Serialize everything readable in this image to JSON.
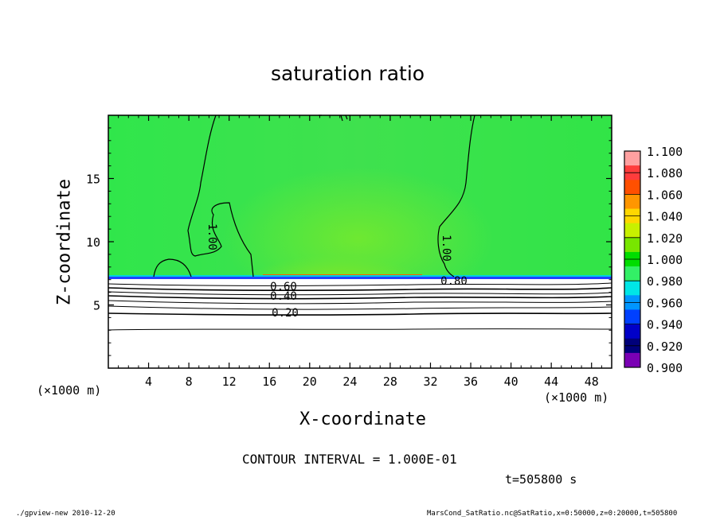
{
  "chart_data": {
    "type": "heatmap",
    "title": "saturation ratio",
    "xlabel": "X-coordinate",
    "ylabel": "Z-coordinate",
    "x_unit": "(×1000 m)",
    "y_unit": "(×1000 m)",
    "xlim": [
      0,
      50
    ],
    "ylim": [
      0,
      20
    ],
    "xticks": [
      4,
      8,
      12,
      16,
      20,
      24,
      28,
      32,
      36,
      40,
      44,
      48
    ],
    "yticks": [
      5,
      10,
      15
    ],
    "colorbar": {
      "levels": [
        "1.100",
        "1.080",
        "1.060",
        "1.040",
        "1.020",
        "1.000",
        "0.980",
        "0.960",
        "0.940",
        "0.920",
        "0.900"
      ],
      "colors": [
        "#ffa0a0",
        "#ff3c3c",
        "#ff5000",
        "#ff9600",
        "#ffd700",
        "#c8f000",
        "#78e600",
        "#00dd00",
        "#33f066",
        "#00e6e6",
        "#0096ff",
        "#0040ff",
        "#0000c8",
        "#00007a",
        "#7a00b4"
      ]
    },
    "contour_labels": [
      "1.00",
      "1.00",
      "0.80",
      "0.60",
      "0.40",
      "0.20"
    ],
    "contour_interval": "CONTOUR INTERVAL = 1.000E-01",
    "time_label": "t=505800 s",
    "footer_left": "./gpview-new  2010-12-20",
    "footer_right": "MarsCond_SatRatio.nc@SatRatio,x=0:50000,z=0:20000,t=505800"
  }
}
